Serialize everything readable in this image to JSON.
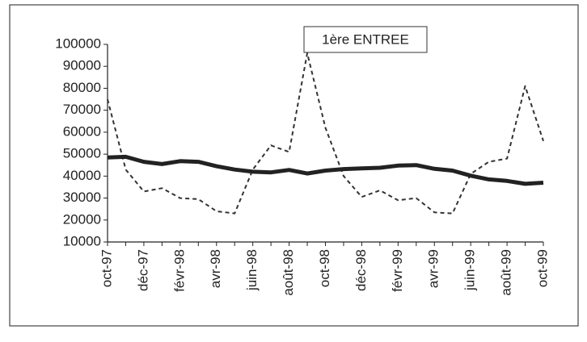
{
  "chart_data": {
    "type": "line",
    "title": "1ère ENTREE",
    "categories": [
      "oct-97",
      null,
      "déc-97",
      null,
      "févr-98",
      null,
      "avr-98",
      null,
      "juin-98",
      null,
      "août-98",
      null,
      "oct-98",
      null,
      "déc-98",
      null,
      "févr-99",
      null,
      "avr-99",
      null,
      "juin-99",
      null,
      "août-99",
      null,
      "oct-99"
    ],
    "series": [
      {
        "color": "#333333",
        "dashed": true,
        "values": [
          75000,
          43000,
          33000,
          34500,
          30000,
          29500,
          24000,
          23000,
          43000,
          54000,
          51000,
          96000,
          62000,
          40000,
          30500,
          33500,
          29000,
          30000,
          23500,
          23000,
          41000,
          46500,
          48000,
          81000,
          56000
        ]
      },
      {
        "color": "#222222",
        "dashed": false,
        "values": [
          48500,
          48800,
          46500,
          45500,
          46800,
          46500,
          44500,
          43000,
          42000,
          41700,
          42800,
          41200,
          42500,
          43200,
          43500,
          43800,
          44800,
          45000,
          43300,
          42500,
          40200,
          38500,
          37800,
          36500,
          37000
        ]
      }
    ],
    "ylim": [
      10000,
      100000
    ],
    "yticks": [
      10000,
      20000,
      30000,
      40000,
      50000,
      60000,
      70000,
      80000,
      90000,
      100000
    ],
    "grid": false
  }
}
